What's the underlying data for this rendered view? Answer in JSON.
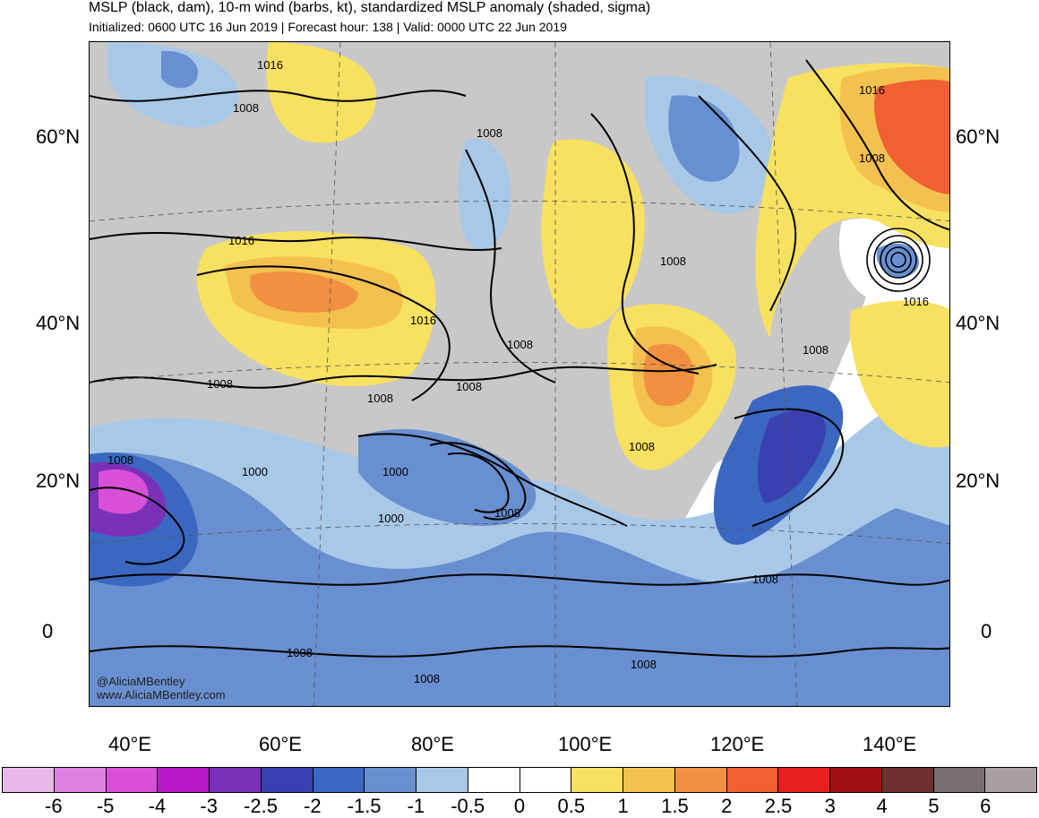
{
  "title": "MSLP (black, dam), 10-m wind (barbs, kt), standardized MSLP anomaly (shaded, sigma)",
  "subtitle": "Initialized: 0600 UTC 16 Jun 2019 | Forecast hour: 138 | Valid: 0000 UTC 22 Jun 2019",
  "latitude_labels": [
    "60°N",
    "40°N",
    "20°N",
    "0"
  ],
  "longitude_labels": [
    "40°E",
    "60°E",
    "80°E",
    "100°E",
    "120°E",
    "140°E"
  ],
  "credit": {
    "handle": "@AliciaMBentley",
    "website": "www.AliciaMBentley.com"
  },
  "contour_labels": [
    "1016",
    "1008",
    "1016",
    "1008",
    "1016",
    "1008",
    "1008",
    "1008",
    "1016",
    "1008",
    "1016",
    "1008",
    "1008",
    "1008",
    "1000",
    "1000",
    "1008",
    "1000",
    "1008",
    "1008",
    "1008",
    "1008",
    "1008",
    "1008"
  ],
  "colorbar": {
    "labels": [
      "-6",
      "-5",
      "-4",
      "-3",
      "-2.5",
      "-2",
      "-1.5",
      "-1",
      "-0.5",
      "0",
      "0.5",
      "1",
      "1.5",
      "2",
      "2.5",
      "3",
      "4",
      "5",
      "6"
    ],
    "colors": [
      "#e8b8e8",
      "#e080e0",
      "#d850d8",
      "#b818c8",
      "#7a30b8",
      "#3a40b0",
      "#3a68c0",
      "#6890d0",
      "#a8c8e8",
      "#ffffff",
      "#ffffff",
      "#f8e060",
      "#f4c050",
      "#f09040",
      "#f06030",
      "#e82020",
      "#a01010",
      "#703030",
      "#787070",
      "#a8a0a0"
    ]
  },
  "colors": {
    "land_neutral": "#c8c8c8",
    "positive_anomaly": "#f8e060",
    "negative_anomaly": "#a8c8e8"
  }
}
